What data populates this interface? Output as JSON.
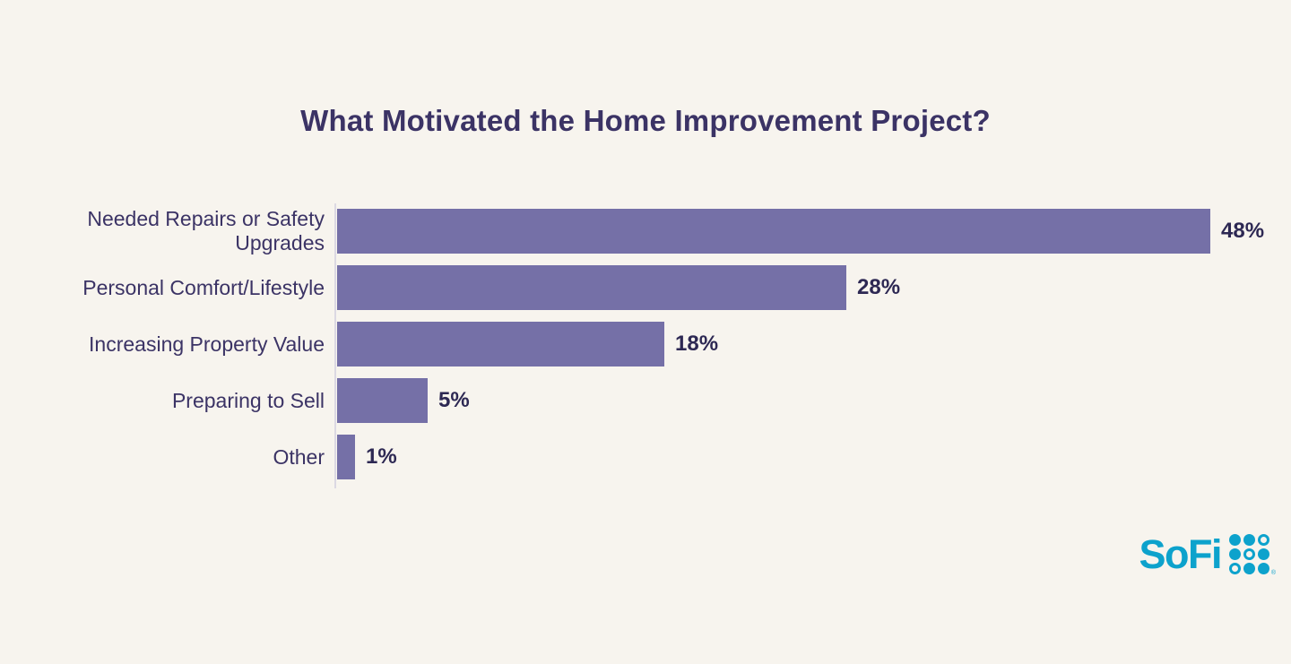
{
  "chart_data": {
    "type": "bar",
    "orientation": "horizontal",
    "title": "What Motivated the Home Improvement Project?",
    "categories": [
      "Needed Repairs or Safety Upgrades",
      "Personal Comfort/Lifestyle",
      "Increasing Property Value",
      "Preparing to Sell",
      "Other"
    ],
    "values": [
      48,
      28,
      18,
      5,
      1
    ],
    "value_labels": [
      "48%",
      "28%",
      "18%",
      "5%",
      "1%"
    ],
    "xlabel": "",
    "ylabel": "",
    "xlim": [
      0,
      48
    ],
    "grid": false,
    "legend": false,
    "colors": {
      "background": "#f7f4ee",
      "bar": "#7570a7",
      "title_text": "#3b3365",
      "category_text": "#3b3365",
      "value_text": "#2d2853",
      "axis_line": "#dcd9e3"
    }
  },
  "branding": {
    "logo_text": "SoFi",
    "logo_trademark": "®",
    "logo_color": "#0da2cc",
    "logo_mark": "sofi-dot-grid-icon",
    "dot_pattern": [
      [
        "filled",
        "filled",
        "outline"
      ],
      [
        "filled",
        "outline",
        "filled"
      ],
      [
        "outline",
        "filled",
        "filled"
      ]
    ]
  }
}
